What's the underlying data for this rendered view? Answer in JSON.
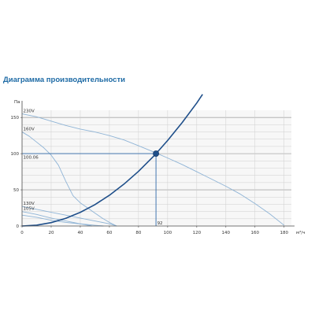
{
  "chart_data": {
    "type": "line",
    "title": "Диаграмма производительности",
    "xlabel": "м³/ч",
    "ylabel": "Па",
    "xlim": [
      0,
      185
    ],
    "ylim": [
      0,
      160
    ],
    "x_ticks": [
      0,
      20,
      40,
      60,
      80,
      100,
      120,
      140,
      160,
      180
    ],
    "y_ticks": [
      0,
      50,
      100,
      150
    ],
    "grid": true,
    "series": [
      {
        "name": "230V",
        "x": [
          0,
          10,
          20,
          30,
          40,
          50,
          60,
          70,
          80,
          92,
          100,
          110,
          120,
          130,
          140,
          150,
          160,
          170,
          180
        ],
        "y": [
          155,
          151,
          145,
          139,
          134,
          130,
          125,
          119,
          111,
          101,
          94,
          85,
          75,
          65,
          55,
          44,
          31,
          17,
          1
        ]
      },
      {
        "name": "160V",
        "x": [
          0,
          5,
          10,
          15,
          20,
          25,
          30,
          35,
          40,
          45,
          50,
          55,
          60,
          65
        ],
        "y": [
          130,
          124,
          116,
          108,
          98,
          84,
          62,
          42,
          32,
          25,
          18,
          11,
          5,
          0
        ]
      },
      {
        "name": "130V",
        "x": [
          0,
          10,
          20,
          30,
          40,
          50,
          60,
          65
        ],
        "y": [
          27,
          23,
          19,
          15,
          11,
          7,
          3,
          0
        ]
      },
      {
        "name": "105V",
        "x": [
          0,
          10,
          20,
          30,
          40,
          48
        ],
        "y": [
          20,
          16,
          11,
          7,
          3,
          0
        ]
      },
      {
        "name": "",
        "x": [
          0,
          10,
          20,
          30,
          40,
          50,
          56
        ],
        "y": [
          15,
          12,
          8,
          5,
          3,
          1,
          0
        ]
      },
      {
        "name": "",
        "x": [
          0,
          10,
          20,
          30,
          40,
          50,
          60,
          70,
          80,
          90,
          92,
          100,
          110,
          120,
          124
        ],
        "y": [
          0,
          1.2,
          4.7,
          10.6,
          18.9,
          29.5,
          42.5,
          57.9,
          75.6,
          95.7,
          100,
          118.2,
          143,
          170,
          182
        ]
      }
    ],
    "operating_point": {
      "x": 92,
      "y": 100.06,
      "x_label": "92",
      "y_label": "100.06"
    },
    "colors": {
      "fan_curve": "#8fb4d6",
      "system_curve": "#1f4f8a",
      "guide_line": "#2f6aa8",
      "grid": "#cfcfcf",
      "axis": "#4a4a4a"
    }
  }
}
